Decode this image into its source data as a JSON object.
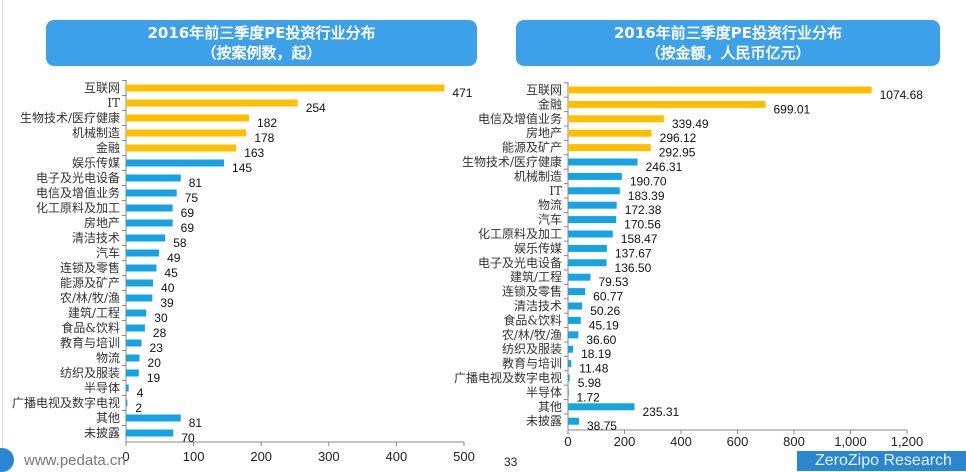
{
  "colors": {
    "highlight": "#FFBF00",
    "normal": "#17A3E3",
    "title_bg": "#3DA1EA"
  },
  "charts": [
    {
      "type": "bar",
      "orientation": "horizontal",
      "title_line1": "2016年前三季度PE投资行业分布",
      "title_line2": "（按案例数，起）",
      "xlim": [
        0,
        500
      ],
      "xticks": [
        "0",
        "100",
        "200",
        "300",
        "400",
        "500"
      ],
      "highlight_count": 5,
      "categories": [
        "互联网",
        "IT",
        "生物技术/医疗健康",
        "机械制造",
        "金融",
        "娱乐传媒",
        "电子及光电设备",
        "电信及增值业务",
        "化工原料及加工",
        "房地产",
        "清洁技术",
        "汽车",
        "连锁及零售",
        "能源及矿产",
        "农/林/牧/渔",
        "建筑/工程",
        "食品&饮料",
        "教育与培训",
        "物流",
        "纺织及服装",
        "半导体",
        "广播电视及数字电视",
        "其他",
        "未披露"
      ],
      "values": [
        471,
        254,
        182,
        178,
        163,
        145,
        81,
        75,
        69,
        69,
        58,
        49,
        45,
        40,
        39,
        30,
        28,
        23,
        20,
        19,
        4,
        2,
        81,
        70
      ],
      "labels": [
        "471",
        "254",
        "182",
        "178",
        "163",
        "145",
        "81",
        "75",
        "69",
        "69",
        "58",
        "49",
        "45",
        "40",
        "39",
        "30",
        "28",
        "23",
        "20",
        "19",
        "4",
        "2",
        "81",
        "70"
      ]
    },
    {
      "type": "bar",
      "orientation": "horizontal",
      "title_line1": "2016年前三季度PE投资行业分布",
      "title_line2": "（按金额，人民币亿元）",
      "xlim": [
        0,
        1200
      ],
      "xticks": [
        "0",
        "200",
        "400",
        "600",
        "800",
        "1,000",
        "1,200"
      ],
      "highlight_count": 5,
      "categories": [
        "互联网",
        "金融",
        "电信及增值业务",
        "房地产",
        "能源及矿产",
        "生物技术/医疗健康",
        "机械制造",
        "IT",
        "物流",
        "汽车",
        "化工原料及加工",
        "娱乐传媒",
        "电子及光电设备",
        "建筑/工程",
        "连锁及零售",
        "清洁技术",
        "食品&饮料",
        "农/林/牧/渔",
        "纺织及服装",
        "教育与培训",
        "广播电视及数字电视",
        "半导体",
        "其他",
        "未披露"
      ],
      "values": [
        1074.68,
        699.01,
        339.49,
        296.12,
        292.95,
        246.31,
        190.7,
        183.39,
        172.38,
        170.56,
        158.47,
        137.67,
        136.5,
        79.53,
        60.77,
        50.26,
        45.19,
        36.6,
        18.19,
        11.48,
        5.98,
        1.72,
        235.31,
        38.75
      ],
      "labels": [
        "1074.68",
        "699.01",
        "339.49",
        "296.12",
        "292.95",
        "246.31",
        "190.70",
        "183.39",
        "172.38",
        "170.56",
        "158.47",
        "137.67",
        "136.50",
        "79.53",
        "60.77",
        "50.26",
        "45.19",
        "36.60",
        "18.19",
        "11.48",
        "5.98",
        "1.72",
        "235.31",
        "38.75"
      ]
    }
  ],
  "footer": {
    "url": "www.pedata.cn",
    "page": "33",
    "brand": "ZeroZipo Research"
  }
}
